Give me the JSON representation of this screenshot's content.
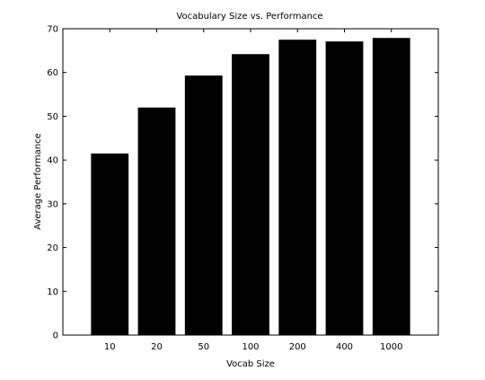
{
  "chart_data": {
    "type": "bar",
    "title": "Vocabulary Size vs. Performance",
    "xlabel": "Vocab Size",
    "ylabel": "Average Performance",
    "categories": [
      "10",
      "20",
      "50",
      "100",
      "200",
      "400",
      "1000"
    ],
    "values": [
      41.5,
      52,
      59.3,
      64.2,
      67.5,
      67.1,
      67.9
    ],
    "ylim": [
      0,
      70
    ],
    "yticks": [
      "0",
      "10",
      "20",
      "30",
      "40",
      "50",
      "60",
      "70"
    ],
    "grid": false,
    "legend": "none",
    "bar_color": "#000000"
  }
}
